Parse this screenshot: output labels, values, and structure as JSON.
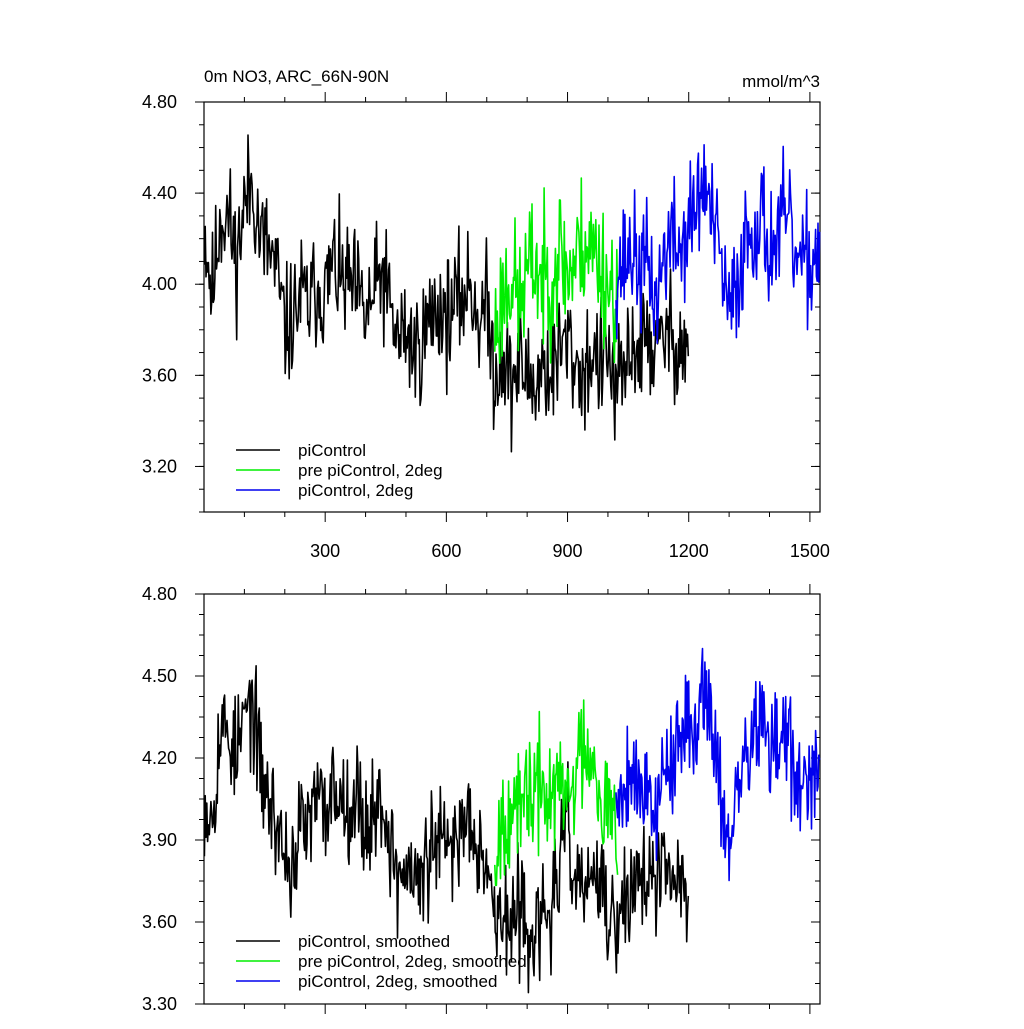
{
  "figure": {
    "title_left": "0m NO3, ARC_66N-90N",
    "title_right": "mmol/m^3"
  },
  "chart_data": [
    {
      "type": "line",
      "xlim": [
        0,
        1525
      ],
      "ylim": [
        3.0,
        4.8
      ],
      "xticks": [
        300,
        600,
        900,
        1200,
        1500
      ],
      "xtick_labels": [
        "300",
        "600",
        "900",
        "1200",
        "1500"
      ],
      "yticks": [
        3.2,
        3.6,
        4.0,
        4.4,
        4.8
      ],
      "ytick_labels": [
        "3.20",
        "3.60",
        "4.00",
        "4.40",
        "4.80"
      ],
      "legend_position": "bottom-left",
      "series": [
        {
          "name": "piControl",
          "color": "#000000",
          "x_start": 1,
          "x_end": 1200,
          "anchors": [
            [
              1,
              4.25
            ],
            [
              20,
              3.95
            ],
            [
              40,
              4.3
            ],
            [
              60,
              4.3
            ],
            [
              80,
              4.1
            ],
            [
              100,
              4.35
            ],
            [
              120,
              4.45
            ],
            [
              140,
              4.2
            ],
            [
              160,
              4.15
            ],
            [
              180,
              4.05
            ],
            [
              200,
              3.8
            ],
            [
              220,
              3.85
            ],
            [
              240,
              3.95
            ],
            [
              260,
              3.9
            ],
            [
              280,
              4.0
            ],
            [
              300,
              3.95
            ],
            [
              320,
              4.1
            ],
            [
              340,
              4.0
            ],
            [
              360,
              4.0
            ],
            [
              380,
              3.95
            ],
            [
              400,
              3.85
            ],
            [
              420,
              3.95
            ],
            [
              440,
              4.05
            ],
            [
              460,
              3.9
            ],
            [
              480,
              3.75
            ],
            [
              500,
              3.8
            ],
            [
              520,
              3.7
            ],
            [
              540,
              3.75
            ],
            [
              560,
              3.85
            ],
            [
              580,
              3.9
            ],
            [
              600,
              3.85
            ],
            [
              620,
              3.9
            ],
            [
              640,
              3.95
            ],
            [
              660,
              4.0
            ],
            [
              680,
              3.85
            ],
            [
              700,
              3.9
            ],
            [
              720,
              3.6
            ],
            [
              740,
              3.7
            ],
            [
              760,
              3.55
            ],
            [
              780,
              3.65
            ],
            [
              800,
              3.6
            ],
            [
              820,
              3.55
            ],
            [
              840,
              3.65
            ],
            [
              860,
              3.6
            ],
            [
              880,
              3.7
            ],
            [
              900,
              3.75
            ],
            [
              920,
              3.65
            ],
            [
              940,
              3.6
            ],
            [
              960,
              3.7
            ],
            [
              980,
              3.65
            ],
            [
              1000,
              3.7
            ],
            [
              1020,
              3.5
            ],
            [
              1040,
              3.6
            ],
            [
              1060,
              3.75
            ],
            [
              1080,
              3.7
            ],
            [
              1100,
              3.8
            ],
            [
              1120,
              3.65
            ],
            [
              1140,
              3.8
            ],
            [
              1160,
              3.75
            ],
            [
              1180,
              3.75
            ],
            [
              1200,
              3.7
            ]
          ],
          "noise": 0.13,
          "seed": 11
        },
        {
          "name": "pre piControl, 2deg",
          "color": "#00ee00",
          "x_start": 720,
          "x_end": 1025,
          "anchors": [
            [
              720,
              3.8
            ],
            [
              740,
              3.95
            ],
            [
              760,
              4.05
            ],
            [
              780,
              3.9
            ],
            [
              800,
              4.05
            ],
            [
              820,
              4.1
            ],
            [
              840,
              4.0
            ],
            [
              860,
              4.05
            ],
            [
              880,
              4.15
            ],
            [
              900,
              4.05
            ],
            [
              920,
              4.1
            ],
            [
              940,
              4.2
            ],
            [
              960,
              4.15
            ],
            [
              980,
              4.1
            ],
            [
              1000,
              4.0
            ],
            [
              1025,
              3.95
            ]
          ],
          "noise": 0.15,
          "seed": 23
        },
        {
          "name": "piControl, 2deg",
          "color": "#0000ee",
          "x_start": 1020,
          "x_end": 1525,
          "anchors": [
            [
              1020,
              4.05
            ],
            [
              1040,
              4.1
            ],
            [
              1060,
              4.15
            ],
            [
              1080,
              4.05
            ],
            [
              1100,
              4.1
            ],
            [
              1120,
              3.9
            ],
            [
              1140,
              4.15
            ],
            [
              1160,
              4.2
            ],
            [
              1180,
              4.15
            ],
            [
              1200,
              4.25
            ],
            [
              1220,
              4.35
            ],
            [
              1240,
              4.45
            ],
            [
              1260,
              4.25
            ],
            [
              1280,
              4.1
            ],
            [
              1300,
              3.85
            ],
            [
              1320,
              4.0
            ],
            [
              1340,
              4.2
            ],
            [
              1360,
              4.25
            ],
            [
              1380,
              4.3
            ],
            [
              1400,
              4.15
            ],
            [
              1420,
              4.2
            ],
            [
              1440,
              4.3
            ],
            [
              1460,
              4.15
            ],
            [
              1480,
              4.05
            ],
            [
              1500,
              4.1
            ],
            [
              1525,
              4.15
            ]
          ],
          "noise": 0.13,
          "seed": 37
        }
      ]
    },
    {
      "type": "line",
      "xlim": [
        0,
        1525
      ],
      "ylim": [
        3.3,
        4.8
      ],
      "xticks": [
        300,
        600,
        900,
        1200,
        1500
      ],
      "xtick_labels": [
        "",
        "",
        "",
        "",
        ""
      ],
      "yticks": [
        3.3,
        3.6,
        3.9,
        4.2,
        4.5,
        4.8
      ],
      "ytick_labels": [
        "3.30",
        "3.60",
        "3.90",
        "4.20",
        "4.50",
        "4.80"
      ],
      "legend_position": "bottom-left",
      "series": [
        {
          "name": "piControl, smoothed",
          "color": "#000000",
          "x_start": 1,
          "x_end": 1200,
          "anchors": [
            [
              1,
              4.05
            ],
            [
              20,
              4.0
            ],
            [
              40,
              4.3
            ],
            [
              60,
              4.3
            ],
            [
              80,
              4.2
            ],
            [
              100,
              4.35
            ],
            [
              120,
              4.4
            ],
            [
              140,
              4.15
            ],
            [
              160,
              4.05
            ],
            [
              180,
              3.95
            ],
            [
              200,
              3.85
            ],
            [
              220,
              3.8
            ],
            [
              240,
              3.95
            ],
            [
              260,
              3.95
            ],
            [
              280,
              4.05
            ],
            [
              300,
              4.0
            ],
            [
              320,
              4.1
            ],
            [
              340,
              4.05
            ],
            [
              360,
              4.05
            ],
            [
              380,
              4.05
            ],
            [
              400,
              3.95
            ],
            [
              420,
              4.0
            ],
            [
              440,
              4.05
            ],
            [
              460,
              3.9
            ],
            [
              480,
              3.75
            ],
            [
              500,
              3.8
            ],
            [
              520,
              3.75
            ],
            [
              540,
              3.75
            ],
            [
              560,
              3.85
            ],
            [
              580,
              3.9
            ],
            [
              600,
              3.85
            ],
            [
              620,
              3.9
            ],
            [
              640,
              3.95
            ],
            [
              660,
              4.0
            ],
            [
              680,
              3.9
            ],
            [
              700,
              3.85
            ],
            [
              720,
              3.6
            ],
            [
              740,
              3.65
            ],
            [
              760,
              3.55
            ],
            [
              780,
              3.65
            ],
            [
              800,
              3.6
            ],
            [
              820,
              3.55
            ],
            [
              840,
              3.6
            ],
            [
              860,
              3.65
            ],
            [
              880,
              3.8
            ],
            [
              900,
              3.95
            ],
            [
              920,
              3.75
            ],
            [
              940,
              3.7
            ],
            [
              960,
              3.8
            ],
            [
              980,
              3.7
            ],
            [
              1000,
              3.65
            ],
            [
              1020,
              3.55
            ],
            [
              1040,
              3.65
            ],
            [
              1060,
              3.75
            ],
            [
              1080,
              3.75
            ],
            [
              1100,
              3.8
            ],
            [
              1120,
              3.7
            ],
            [
              1140,
              3.8
            ],
            [
              1160,
              3.75
            ],
            [
              1180,
              3.75
            ],
            [
              1200,
              3.68
            ]
          ],
          "noise": 0.1,
          "seed": 53
        },
        {
          "name": "pre piControl, 2deg, smoothed",
          "color": "#00ee00",
          "x_start": 720,
          "x_end": 1025,
          "anchors": [
            [
              720,
              3.85
            ],
            [
              740,
              4.0
            ],
            [
              760,
              4.05
            ],
            [
              780,
              3.95
            ],
            [
              800,
              4.1
            ],
            [
              820,
              4.05
            ],
            [
              840,
              4.1
            ],
            [
              860,
              4.05
            ],
            [
              880,
              4.1
            ],
            [
              900,
              4.05
            ],
            [
              920,
              4.15
            ],
            [
              940,
              4.25
            ],
            [
              960,
              4.25
            ],
            [
              980,
              4.1
            ],
            [
              1000,
              4.0
            ],
            [
              1025,
              3.95
            ]
          ],
          "noise": 0.11,
          "seed": 67
        },
        {
          "name": "piControl, 2deg, smoothed",
          "color": "#0000ee",
          "x_start": 1020,
          "x_end": 1525,
          "anchors": [
            [
              1020,
              4.05
            ],
            [
              1040,
              4.1
            ],
            [
              1060,
              4.2
            ],
            [
              1080,
              4.05
            ],
            [
              1100,
              4.15
            ],
            [
              1120,
              3.95
            ],
            [
              1140,
              4.2
            ],
            [
              1160,
              4.2
            ],
            [
              1180,
              4.25
            ],
            [
              1200,
              4.3
            ],
            [
              1220,
              4.35
            ],
            [
              1240,
              4.5
            ],
            [
              1260,
              4.3
            ],
            [
              1280,
              4.1
            ],
            [
              1300,
              3.85
            ],
            [
              1320,
              4.05
            ],
            [
              1340,
              4.2
            ],
            [
              1360,
              4.3
            ],
            [
              1380,
              4.35
            ],
            [
              1400,
              4.2
            ],
            [
              1420,
              4.25
            ],
            [
              1440,
              4.3
            ],
            [
              1460,
              4.15
            ],
            [
              1480,
              4.1
            ],
            [
              1500,
              4.05
            ],
            [
              1525,
              4.15
            ]
          ],
          "noise": 0.1,
          "seed": 79
        }
      ]
    }
  ]
}
